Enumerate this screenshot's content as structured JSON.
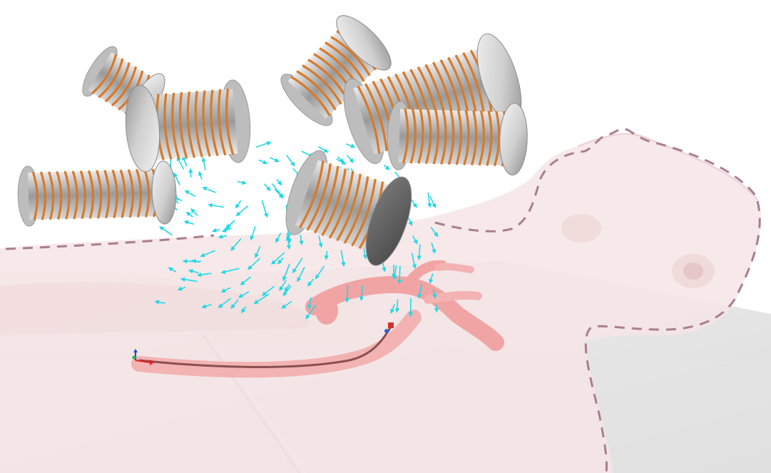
{
  "scene": {
    "subject": "supine-patient-with-magnetic-coil-array",
    "coil_count": 7,
    "colors": {
      "background": "#ffffff",
      "body": "#f6e3e3",
      "table": "#e6e6e6",
      "vessel": "#f3a2a2",
      "coil_cap": "#d8d8d8",
      "coil_cap_dark": "#5e5e5e",
      "winding": "#d77a2a",
      "field_arrows": "#22d8e6",
      "outline": "#a97e90",
      "catheter": "#8a5050",
      "axis_x": "#e02020",
      "axis_y": "#20c040",
      "axis_z": "#2040e0"
    }
  }
}
